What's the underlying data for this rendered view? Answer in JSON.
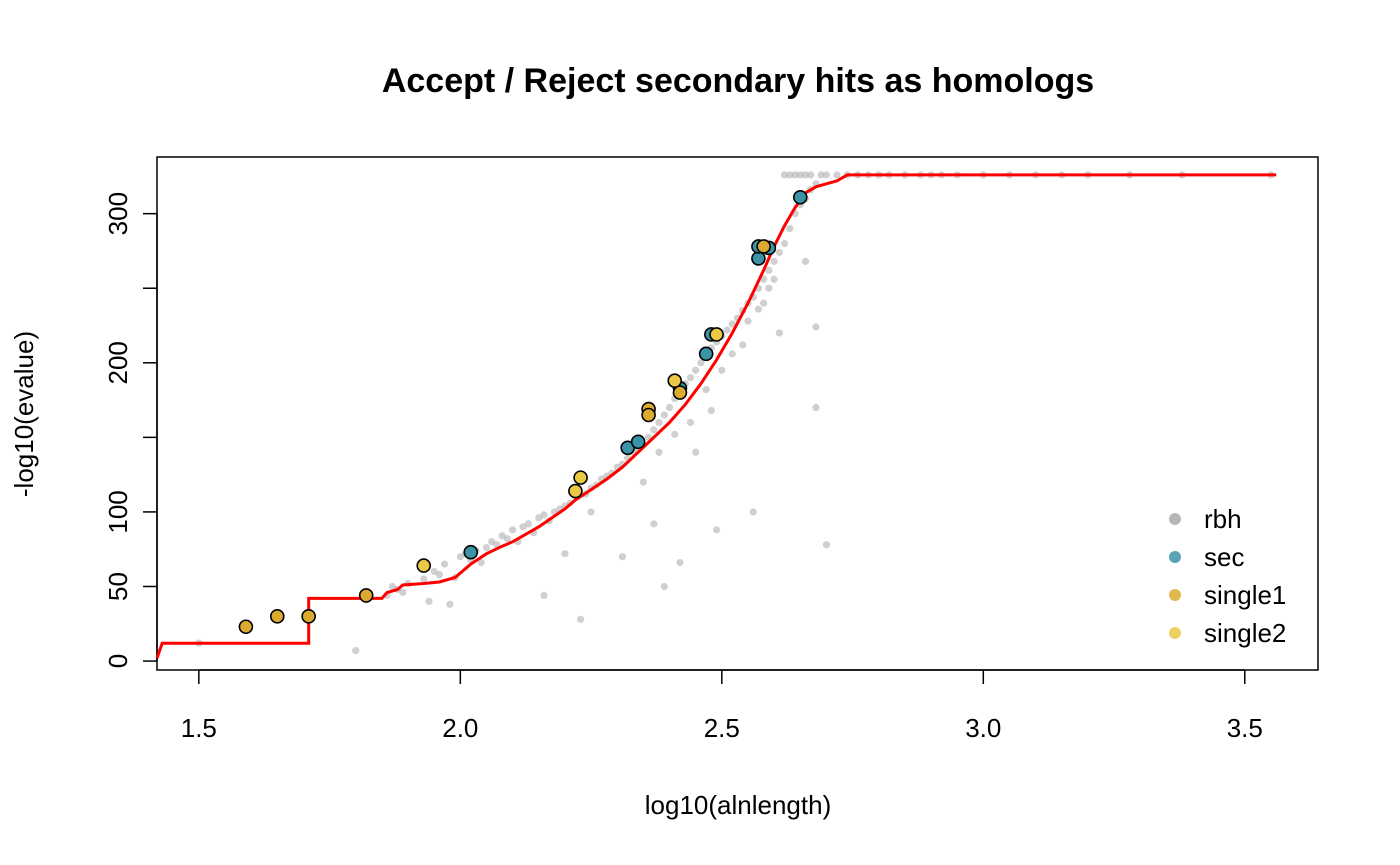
{
  "chart_data": {
    "type": "scatter",
    "title": "Accept / Reject secondary hits as homologs",
    "xlabel": "log10(alnlength)",
    "ylabel": "-log10(evalue)",
    "xlim": [
      1.42,
      3.64
    ],
    "ylim": [
      -6,
      338
    ],
    "xticks": [
      1.5,
      2.0,
      2.5,
      3.0,
      3.5
    ],
    "xtick_labels": [
      "1.5",
      "2.0",
      "2.5",
      "3.0",
      "3.5"
    ],
    "yticks": [
      0,
      50,
      100,
      150,
      200,
      250,
      300
    ],
    "ytick_labels": [
      "0",
      "50",
      "100",
      "",
      "200",
      "",
      "300"
    ],
    "grid": false,
    "legend_position": "bottom-right",
    "colors": {
      "rbh": "#aaaaaa",
      "sec": "#3b93a8",
      "single1": "#dcaa2e",
      "single2": "#eac944",
      "threshold": "#ff0000"
    },
    "legend": [
      {
        "key": "rbh",
        "label": "rbh"
      },
      {
        "key": "sec",
        "label": "sec"
      },
      {
        "key": "single1",
        "label": "single1"
      },
      {
        "key": "single2",
        "label": "single2"
      }
    ],
    "series": [
      {
        "key": "rbh",
        "points": [
          [
            1.5,
            12
          ],
          [
            1.8,
            7
          ],
          [
            1.82,
            41
          ],
          [
            1.86,
            44
          ],
          [
            1.87,
            50
          ],
          [
            1.88,
            48
          ],
          [
            1.89,
            46
          ],
          [
            1.9,
            52
          ],
          [
            1.93,
            55
          ],
          [
            1.94,
            40
          ],
          [
            1.95,
            60
          ],
          [
            1.96,
            58
          ],
          [
            1.97,
            65
          ],
          [
            1.98,
            38
          ],
          [
            1.99,
            56
          ],
          [
            2.0,
            70
          ],
          [
            2.01,
            72
          ],
          [
            2.02,
            68
          ],
          [
            2.03,
            74
          ],
          [
            2.04,
            66
          ],
          [
            2.05,
            76
          ],
          [
            2.06,
            80
          ],
          [
            2.07,
            78
          ],
          [
            2.08,
            84
          ],
          [
            2.09,
            82
          ],
          [
            2.1,
            88
          ],
          [
            2.11,
            80
          ],
          [
            2.12,
            90
          ],
          [
            2.13,
            92
          ],
          [
            2.14,
            86
          ],
          [
            2.15,
            96
          ],
          [
            2.16,
            44
          ],
          [
            2.16,
            98
          ],
          [
            2.17,
            94
          ],
          [
            2.18,
            100
          ],
          [
            2.19,
            102
          ],
          [
            2.2,
            104
          ],
          [
            2.2,
            72
          ],
          [
            2.21,
            106
          ],
          [
            2.22,
            110
          ],
          [
            2.23,
            28
          ],
          [
            2.24,
            112
          ],
          [
            2.25,
            116
          ],
          [
            2.25,
            100
          ],
          [
            2.26,
            118
          ],
          [
            2.27,
            122
          ],
          [
            2.28,
            124
          ],
          [
            2.29,
            126
          ],
          [
            2.3,
            130
          ],
          [
            2.31,
            132
          ],
          [
            2.31,
            70
          ],
          [
            2.32,
            136
          ],
          [
            2.33,
            140
          ],
          [
            2.34,
            142
          ],
          [
            2.35,
            145
          ],
          [
            2.35,
            120
          ],
          [
            2.36,
            150
          ],
          [
            2.37,
            155
          ],
          [
            2.37,
            92
          ],
          [
            2.38,
            160
          ],
          [
            2.38,
            140
          ],
          [
            2.39,
            50
          ],
          [
            2.39,
            165
          ],
          [
            2.4,
            170
          ],
          [
            2.41,
            176
          ],
          [
            2.41,
            152
          ],
          [
            2.42,
            182
          ],
          [
            2.42,
            66
          ],
          [
            2.43,
            186
          ],
          [
            2.44,
            190
          ],
          [
            2.44,
            160
          ],
          [
            2.45,
            195
          ],
          [
            2.45,
            140
          ],
          [
            2.46,
            200
          ],
          [
            2.47,
            204
          ],
          [
            2.47,
            182
          ],
          [
            2.48,
            210
          ],
          [
            2.48,
            168
          ],
          [
            2.49,
            214
          ],
          [
            2.49,
            88
          ],
          [
            2.5,
            218
          ],
          [
            2.5,
            195
          ],
          [
            2.51,
            222
          ],
          [
            2.52,
            226
          ],
          [
            2.52,
            206
          ],
          [
            2.53,
            230
          ],
          [
            2.54,
            235
          ],
          [
            2.54,
            212
          ],
          [
            2.55,
            240
          ],
          [
            2.55,
            228
          ],
          [
            2.56,
            244
          ],
          [
            2.56,
            100
          ],
          [
            2.57,
            250
          ],
          [
            2.57,
            236
          ],
          [
            2.58,
            256
          ],
          [
            2.58,
            240
          ],
          [
            2.59,
            262
          ],
          [
            2.59,
            250
          ],
          [
            2.6,
            268
          ],
          [
            2.6,
            256
          ],
          [
            2.61,
            274
          ],
          [
            2.61,
            220
          ],
          [
            2.62,
            280
          ],
          [
            2.62,
            326
          ],
          [
            2.63,
            290
          ],
          [
            2.63,
            326
          ],
          [
            2.64,
            300
          ],
          [
            2.64,
            326
          ],
          [
            2.65,
            306
          ],
          [
            2.65,
            326
          ],
          [
            2.66,
            310
          ],
          [
            2.66,
            326
          ],
          [
            2.66,
            268
          ],
          [
            2.67,
            316
          ],
          [
            2.67,
            326
          ],
          [
            2.68,
            320
          ],
          [
            2.68,
            224
          ],
          [
            2.68,
            170
          ],
          [
            2.69,
            326
          ],
          [
            2.7,
            78
          ],
          [
            2.7,
            326
          ],
          [
            2.72,
            326
          ],
          [
            2.74,
            326
          ],
          [
            2.76,
            326
          ],
          [
            2.78,
            326
          ],
          [
            2.8,
            326
          ],
          [
            2.82,
            326
          ],
          [
            2.85,
            326
          ],
          [
            2.88,
            326
          ],
          [
            2.9,
            326
          ],
          [
            2.92,
            326
          ],
          [
            2.95,
            326
          ],
          [
            3.0,
            326
          ],
          [
            3.05,
            326
          ],
          [
            3.1,
            326
          ],
          [
            3.15,
            326
          ],
          [
            3.2,
            326
          ],
          [
            3.28,
            326
          ],
          [
            3.38,
            326
          ],
          [
            3.55,
            326
          ]
        ]
      },
      {
        "key": "sec",
        "points": [
          [
            2.02,
            73
          ],
          [
            2.32,
            143
          ],
          [
            2.34,
            147
          ],
          [
            2.42,
            183
          ],
          [
            2.47,
            206
          ],
          [
            2.48,
            219
          ],
          [
            2.57,
            270
          ],
          [
            2.57,
            278
          ],
          [
            2.59,
            277
          ],
          [
            2.65,
            311
          ]
        ]
      },
      {
        "key": "single1",
        "points": [
          [
            1.59,
            23
          ],
          [
            1.65,
            30
          ],
          [
            1.71,
            30
          ],
          [
            1.82,
            44
          ],
          [
            2.36,
            169
          ],
          [
            2.36,
            165
          ],
          [
            2.42,
            180
          ],
          [
            2.58,
            278
          ]
        ]
      },
      {
        "key": "single2",
        "points": [
          [
            1.93,
            64
          ],
          [
            2.22,
            114
          ],
          [
            2.23,
            123
          ],
          [
            2.41,
            188
          ],
          [
            2.49,
            219
          ]
        ]
      }
    ],
    "threshold_line": [
      [
        1.42,
        2
      ],
      [
        1.43,
        12
      ],
      [
        1.71,
        12
      ],
      [
        1.71,
        42
      ],
      [
        1.85,
        42
      ],
      [
        1.86,
        46
      ],
      [
        1.88,
        48
      ],
      [
        1.89,
        51
      ],
      [
        1.93,
        52
      ],
      [
        1.96,
        53
      ],
      [
        1.99,
        56
      ],
      [
        2.02,
        65
      ],
      [
        2.05,
        72
      ],
      [
        2.08,
        77
      ],
      [
        2.1,
        80
      ],
      [
        2.15,
        90
      ],
      [
        2.2,
        102
      ],
      [
        2.22,
        108
      ],
      [
        2.25,
        115
      ],
      [
        2.28,
        122
      ],
      [
        2.31,
        130
      ],
      [
        2.34,
        140
      ],
      [
        2.37,
        150
      ],
      [
        2.4,
        160
      ],
      [
        2.43,
        172
      ],
      [
        2.46,
        186
      ],
      [
        2.49,
        202
      ],
      [
        2.52,
        220
      ],
      [
        2.55,
        240
      ],
      [
        2.58,
        262
      ],
      [
        2.6,
        278
      ],
      [
        2.62,
        292
      ],
      [
        2.64,
        304
      ],
      [
        2.66,
        314
      ],
      [
        2.68,
        318
      ],
      [
        2.7,
        320
      ],
      [
        2.72,
        322
      ],
      [
        2.73,
        324
      ],
      [
        2.74,
        326
      ],
      [
        3.56,
        326
      ]
    ]
  }
}
